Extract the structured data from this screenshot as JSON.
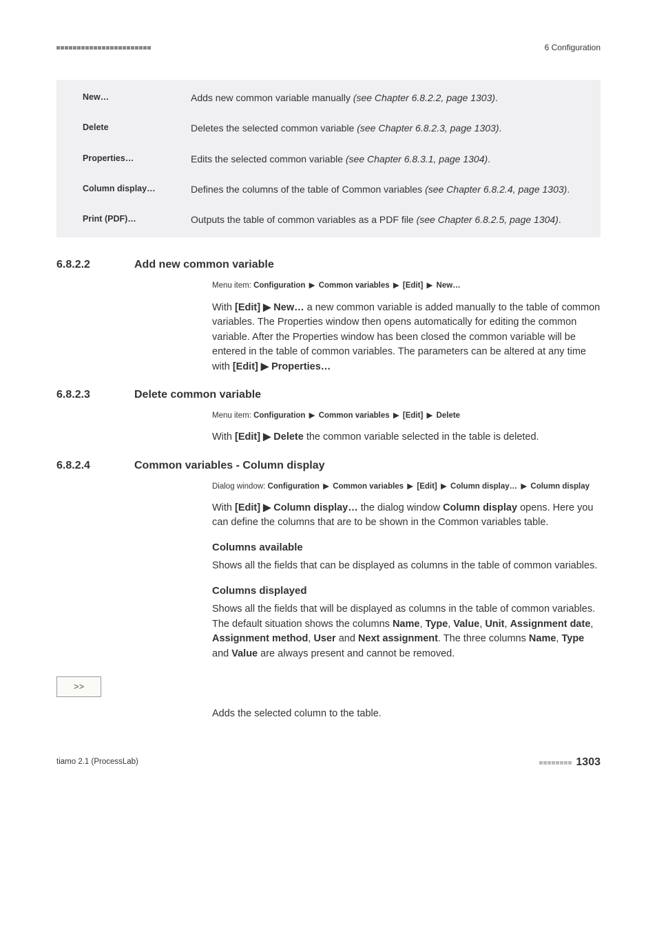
{
  "header": {
    "section_label": "6 Configuration"
  },
  "definitions": [
    {
      "term": "New…",
      "desc_pre": "Adds new common variable manually ",
      "desc_italic": "(see Chapter 6.8.2.2, page 1303)",
      "desc_post": "."
    },
    {
      "term": "Delete",
      "desc_pre": "Deletes the selected common variable ",
      "desc_italic": "(see Chapter 6.8.2.3, page 1303)",
      "desc_post": "."
    },
    {
      "term": "Properties…",
      "desc_pre": "Edits the selected common variable ",
      "desc_italic": "(see Chapter 6.8.3.1, page 1304)",
      "desc_post": "."
    },
    {
      "term": "Column display…",
      "desc_pre": "Defines the columns of the table of Common variables ",
      "desc_italic": "(see Chapter 6.8.2.4, page 1303)",
      "desc_post": "."
    },
    {
      "term": "Print (PDF)…",
      "desc_pre": "Outputs the table of common variables as a PDF file ",
      "desc_italic": "(see Chapter 6.8.2.5, page 1304)",
      "desc_post": "."
    }
  ],
  "sections": {
    "s1": {
      "num": "6.8.2.2",
      "title": "Add new common variable",
      "menu_prefix": "Menu item: ",
      "menu_parts": [
        "Configuration",
        "Common variables",
        "[Edit]",
        "New…"
      ],
      "body_html": "With <b>[Edit] ▶ New…</b> a new common variable is added manually to the table of common variables. The Properties window then opens automatically for editing the common variable. After the Properties window has been closed the common variable will be entered in the table of common variables. The parameters can be altered at any time with <b>[Edit] ▶ Properties…</b>"
    },
    "s2": {
      "num": "6.8.2.3",
      "title": "Delete common variable",
      "menu_prefix": "Menu item: ",
      "menu_parts": [
        "Configuration",
        "Common variables",
        "[Edit]",
        "Delete"
      ],
      "body_html": "With <b>[Edit] ▶ Delete</b> the common variable selected in the table is deleted."
    },
    "s3": {
      "num": "6.8.2.4",
      "title": "Common variables - Column display",
      "menu_prefix": "Dialog window: ",
      "menu_parts": [
        "Configuration",
        "Common variables",
        "[Edit]",
        "Column display…",
        "Column display"
      ],
      "body_html": "With <b>[Edit] ▶ Column display…</b> the dialog window <b>Column display</b> opens. Here you can define the columns that are to be shown in the Common variables table.",
      "sub1_heading": "Columns available",
      "sub1_body": "Shows all the fields that can be displayed as columns in the table of common variables.",
      "sub2_heading": "Columns displayed",
      "sub2_body_html": "Shows all the fields that will be displayed as columns in the table of common variables. The default situation shows the columns <b>Name</b>, <b>Type</b>, <b>Value</b>, <b>Unit</b>, <b>Assignment date</b>, <b>Assignment method</b>, <b>User</b> and <b>Next assignment</b>. The three columns <b>Name</b>, <b>Type</b> and <b>Value</b> are always present and cannot be removed.",
      "button_label": ">>",
      "button_desc": "Adds the selected column to the table."
    }
  },
  "footer": {
    "left": "tiamo 2.1 (ProcessLab)",
    "page_num": "1303"
  },
  "arrow_glyph": "▶"
}
